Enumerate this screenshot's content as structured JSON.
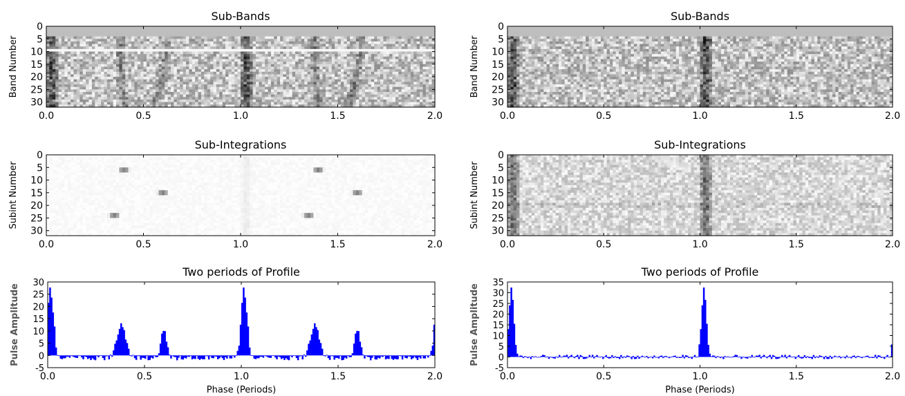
{
  "chart_data": [
    {
      "id": "left-subbands",
      "type": "heatmap",
      "title": "Sub-Bands",
      "xlabel": "",
      "ylabel": "Band Number",
      "xlim": [
        0.0,
        2.0
      ],
      "ylim": [
        0,
        32
      ],
      "xticks": [
        "0.0",
        "0.5",
        "1.0",
        "1.5",
        "2.0"
      ],
      "yticks": [
        "0",
        "5",
        "10",
        "15",
        "20",
        "25",
        "30"
      ],
      "colormap": "grayscale",
      "features": [
        {
          "kind": "vertical-band",
          "x": 0.03,
          "y_range": [
            4,
            32
          ]
        },
        {
          "kind": "vertical-band",
          "x": 1.03,
          "y_range": [
            4,
            32
          ]
        },
        {
          "kind": "curved-band",
          "x_top": 0.38,
          "x_bottom": 0.4,
          "y_range": [
            4,
            32
          ]
        },
        {
          "kind": "curved-band",
          "x_top": 0.62,
          "x_bottom": 0.55,
          "y_range": [
            4,
            32
          ]
        },
        {
          "kind": "curved-band",
          "x_top": 1.38,
          "x_bottom": 1.4,
          "y_range": [
            4,
            32
          ]
        },
        {
          "kind": "curved-band",
          "x_top": 1.62,
          "x_bottom": 1.55,
          "y_range": [
            4,
            32
          ]
        },
        {
          "kind": "white-row",
          "y": 9.5
        },
        {
          "kind": "masked-rows",
          "y_range": [
            0,
            4
          ]
        }
      ]
    },
    {
      "id": "right-subbands",
      "type": "heatmap",
      "title": "Sub-Bands",
      "xlabel": "",
      "ylabel": "Band Number",
      "xlim": [
        0.0,
        2.0
      ],
      "ylim": [
        0,
        32
      ],
      "xticks": [
        "0.0",
        "0.5",
        "1.0",
        "1.5",
        "2.0"
      ],
      "yticks": [
        "0",
        "5",
        "10",
        "15",
        "20",
        "25",
        "30"
      ],
      "colormap": "grayscale",
      "features": [
        {
          "kind": "vertical-band",
          "x": 0.03,
          "y_range": [
            4,
            32
          ]
        },
        {
          "kind": "vertical-band",
          "x": 1.03,
          "y_range": [
            4,
            32
          ]
        },
        {
          "kind": "masked-rows",
          "y_range": [
            0,
            4
          ]
        }
      ]
    },
    {
      "id": "left-subints",
      "type": "heatmap",
      "title": "Sub-Integrations",
      "xlabel": "",
      "ylabel": "Subint Number",
      "xlim": [
        0.0,
        2.0
      ],
      "ylim": [
        0,
        32
      ],
      "xticks": [
        "0.0",
        "0.5",
        "1.0",
        "1.5",
        "2.0"
      ],
      "yticks": [
        "0",
        "5",
        "10",
        "15",
        "20",
        "25",
        "30"
      ],
      "colormap": "grayscale",
      "features": [
        {
          "kind": "blob",
          "x": 0.4,
          "y": 6
        },
        {
          "kind": "blob",
          "x": 0.6,
          "y": 15
        },
        {
          "kind": "blob",
          "x": 0.35,
          "y": 24
        },
        {
          "kind": "blob",
          "x": 1.4,
          "y": 6
        },
        {
          "kind": "blob",
          "x": 1.6,
          "y": 15
        },
        {
          "kind": "blob",
          "x": 1.35,
          "y": 24
        },
        {
          "kind": "faint-band",
          "x": 1.03,
          "y_range": [
            0,
            32
          ]
        }
      ]
    },
    {
      "id": "right-subints",
      "type": "heatmap",
      "title": "Sub-Integrations",
      "xlabel": "",
      "ylabel": "Subint Number",
      "xlim": [
        0.0,
        2.0
      ],
      "ylim": [
        0,
        32
      ],
      "xticks": [
        "0.0",
        "0.5",
        "1.0",
        "1.5",
        "2.0"
      ],
      "yticks": [
        "0",
        "5",
        "10",
        "15",
        "20",
        "25",
        "30"
      ],
      "colormap": "grayscale",
      "features": [
        {
          "kind": "vertical-band",
          "x": 0.03,
          "y_range": [
            0,
            32
          ]
        },
        {
          "kind": "vertical-band",
          "x": 1.03,
          "y_range": [
            0,
            32
          ]
        },
        {
          "kind": "faint-row",
          "y": 20
        }
      ]
    },
    {
      "id": "left-profile",
      "type": "bar",
      "title": "Two periods of Profile",
      "xlabel": "Phase (Periods)",
      "ylabel": "Pulse Amplitude",
      "xlim": [
        0.0,
        2.0
      ],
      "ylim": [
        -5,
        30
      ],
      "xticks": [
        "0.0",
        "0.5",
        "1.0",
        "1.5",
        "2.0"
      ],
      "yticks": [
        "-5",
        "0",
        "5",
        "10",
        "15",
        "20",
        "25",
        "30"
      ],
      "bar_color": "#0000ff",
      "bins_per_period": 128,
      "peaks": [
        {
          "center": 0.015,
          "amplitude": 30,
          "width": 0.03
        },
        {
          "center": 0.38,
          "amplitude": 13,
          "width": 0.045
        },
        {
          "center": 0.6,
          "amplitude": 12,
          "width": 0.03
        }
      ],
      "baseline": -1
    },
    {
      "id": "right-profile",
      "type": "bar",
      "title": "Two periods of Profile",
      "xlabel": "Phase (Periods)",
      "ylabel": "Pulse Amplitude",
      "xlim": [
        0.0,
        2.0
      ],
      "ylim": [
        -5,
        35
      ],
      "xticks": [
        "0.0",
        "0.5",
        "1.0",
        "1.5",
        "2.0"
      ],
      "yticks": [
        "-5",
        "0",
        "5",
        "10",
        "15",
        "20",
        "25",
        "30",
        "35"
      ],
      "bar_color": "#0000ff",
      "bins_per_period": 128,
      "peaks": [
        {
          "center": 0.02,
          "amplitude": 33,
          "width": 0.025
        }
      ],
      "baseline": 0
    }
  ]
}
